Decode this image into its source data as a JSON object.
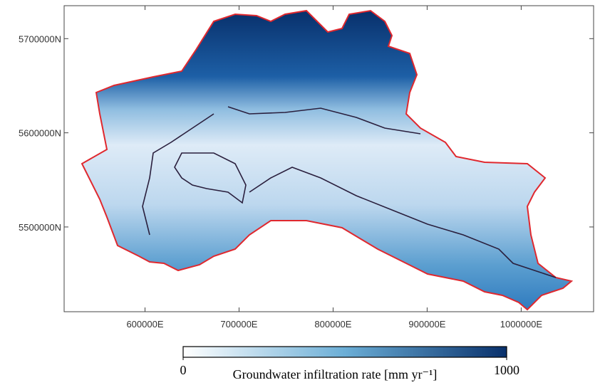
{
  "map": {
    "xlim": [
      514000,
      1077000
    ],
    "ylim": [
      5410000,
      5735000
    ],
    "xticks": [
      {
        "value": 600000,
        "label": "600000E"
      },
      {
        "value": 700000,
        "label": "700000E"
      },
      {
        "value": 800000,
        "label": "800000E"
      },
      {
        "value": 900000,
        "label": "900000E"
      },
      {
        "value": 1000000,
        "label": "1000000E"
      }
    ],
    "yticks": [
      {
        "value": 5500000,
        "label": "5500000N"
      },
      {
        "value": 5600000,
        "label": "5600000N"
      },
      {
        "value": 5700000,
        "label": "5700000N"
      }
    ],
    "colorbar": {
      "label": "Groundwater infiltration rate [mm yr⁻¹]",
      "range": [
        0,
        1000
      ],
      "ticks": [
        0,
        1000
      ],
      "colors": [
        "#ffffff",
        "#08306b"
      ]
    }
  }
}
